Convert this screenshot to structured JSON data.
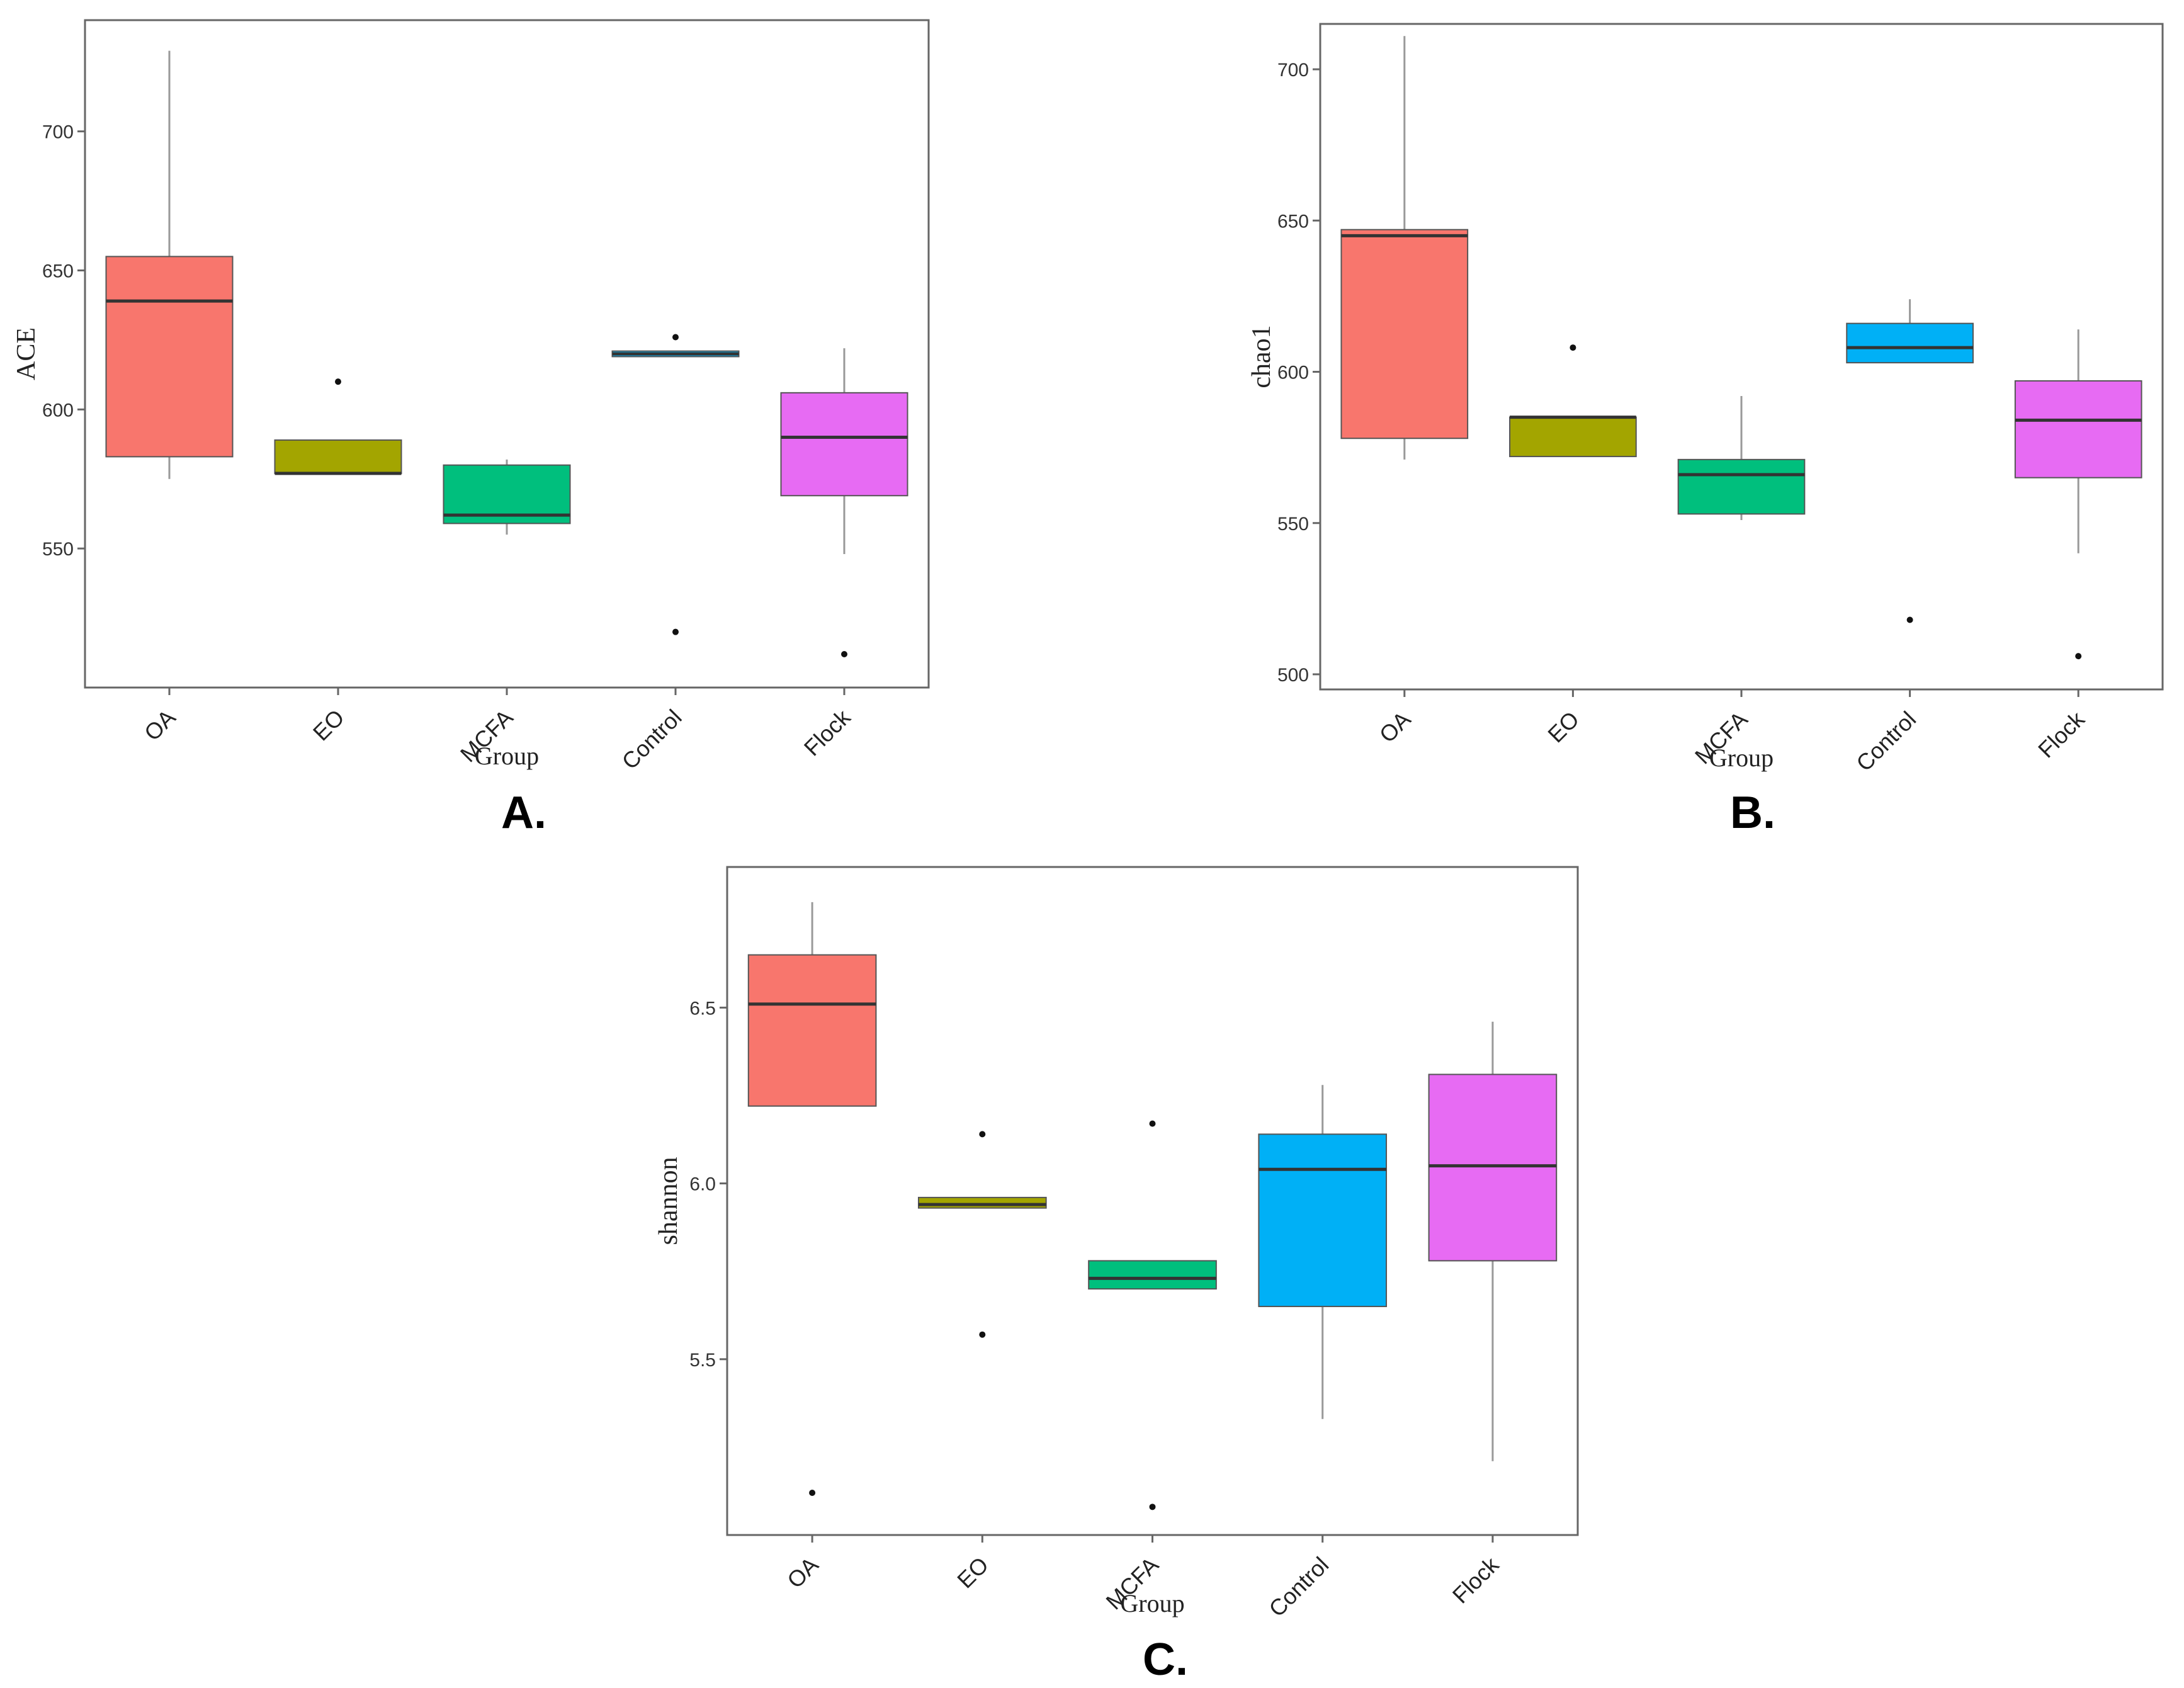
{
  "chart_data": [
    {
      "id": "A",
      "type": "boxplot",
      "panel_label": "A.",
      "xlabel": "Group",
      "ylabel": "ACE",
      "ylim": [
        500,
        740
      ],
      "yticks": [
        550,
        600,
        650,
        700
      ],
      "ytick_labels": [
        "550",
        "600",
        "650",
        "700"
      ],
      "categories": [
        "OA",
        "EO",
        "MCFA",
        "Control",
        "Flock"
      ],
      "colors": [
        "#F8766D",
        "#A3A500",
        "#00BF7D",
        "#00B0F6",
        "#E76BF3"
      ],
      "boxes": [
        {
          "min": 575,
          "q1": 583,
          "median": 639,
          "q3": 655,
          "max": 729,
          "outliers": []
        },
        {
          "min": 577,
          "q1": 577,
          "median": 577,
          "q3": 589,
          "max": 589,
          "outliers": [
            610
          ]
        },
        {
          "min": 555,
          "q1": 559,
          "median": 562,
          "q3": 580,
          "max": 582,
          "outliers": []
        },
        {
          "min": 619,
          "q1": 619,
          "median": 620,
          "q3": 621,
          "max": 621,
          "outliers": [
            626,
            520
          ]
        },
        {
          "min": 548,
          "q1": 569,
          "median": 590,
          "q3": 606,
          "max": 622,
          "outliers": [
            512
          ]
        }
      ]
    },
    {
      "id": "B",
      "type": "boxplot",
      "panel_label": "B.",
      "xlabel": "Group",
      "ylabel": "chao1",
      "ylim": [
        495,
        715
      ],
      "yticks": [
        500,
        550,
        600,
        650,
        700
      ],
      "ytick_labels": [
        "500",
        "550",
        "600",
        "650",
        "700"
      ],
      "categories": [
        "OA",
        "EO",
        "MCFA",
        "Control",
        "Flock"
      ],
      "colors": [
        "#F8766D",
        "#A3A500",
        "#00BF7D",
        "#00B0F6",
        "#E76BF3"
      ],
      "boxes": [
        {
          "min": 571,
          "q1": 578,
          "median": 645,
          "q3": 647,
          "max": 711,
          "outliers": []
        },
        {
          "min": 572,
          "q1": 572,
          "median": 585,
          "q3": 585,
          "max": 585,
          "outliers": [
            608
          ]
        },
        {
          "min": 551,
          "q1": 553,
          "median": 566,
          "q3": 571,
          "max": 592,
          "outliers": []
        },
        {
          "min": 603,
          "q1": 603,
          "median": 608,
          "q3": 616,
          "max": 624,
          "outliers": [
            518
          ]
        },
        {
          "min": 540,
          "q1": 565,
          "median": 584,
          "q3": 597,
          "max": 614,
          "outliers": [
            506
          ]
        }
      ]
    },
    {
      "id": "C",
      "type": "boxplot",
      "panel_label": "C.",
      "xlabel": "Group",
      "ylabel": "shannon",
      "ylim": [
        5.0,
        6.9
      ],
      "yticks": [
        5.5,
        6.0,
        6.5
      ],
      "ytick_labels": [
        "5.5",
        "6.0",
        "6.5"
      ],
      "categories": [
        "OA",
        "EO",
        "MCFA",
        "Control",
        "Flock"
      ],
      "colors": [
        "#F8766D",
        "#A3A500",
        "#00BF7D",
        "#00B0F6",
        "#E76BF3"
      ],
      "boxes": [
        {
          "min": 6.22,
          "q1": 6.22,
          "median": 6.51,
          "q3": 6.65,
          "max": 6.8,
          "outliers": [
            5.12
          ]
        },
        {
          "min": 5.93,
          "q1": 5.93,
          "median": 5.94,
          "q3": 5.96,
          "max": 5.96,
          "outliers": [
            6.14,
            5.57
          ]
        },
        {
          "min": 5.7,
          "q1": 5.7,
          "median": 5.73,
          "q3": 5.78,
          "max": 5.78,
          "outliers": [
            6.17,
            5.08
          ]
        },
        {
          "min": 5.33,
          "q1": 5.65,
          "median": 6.04,
          "q3": 6.14,
          "max": 6.28,
          "outliers": []
        },
        {
          "min": 5.21,
          "q1": 5.78,
          "median": 6.05,
          "q3": 6.31,
          "max": 6.46,
          "outliers": []
        }
      ]
    }
  ]
}
